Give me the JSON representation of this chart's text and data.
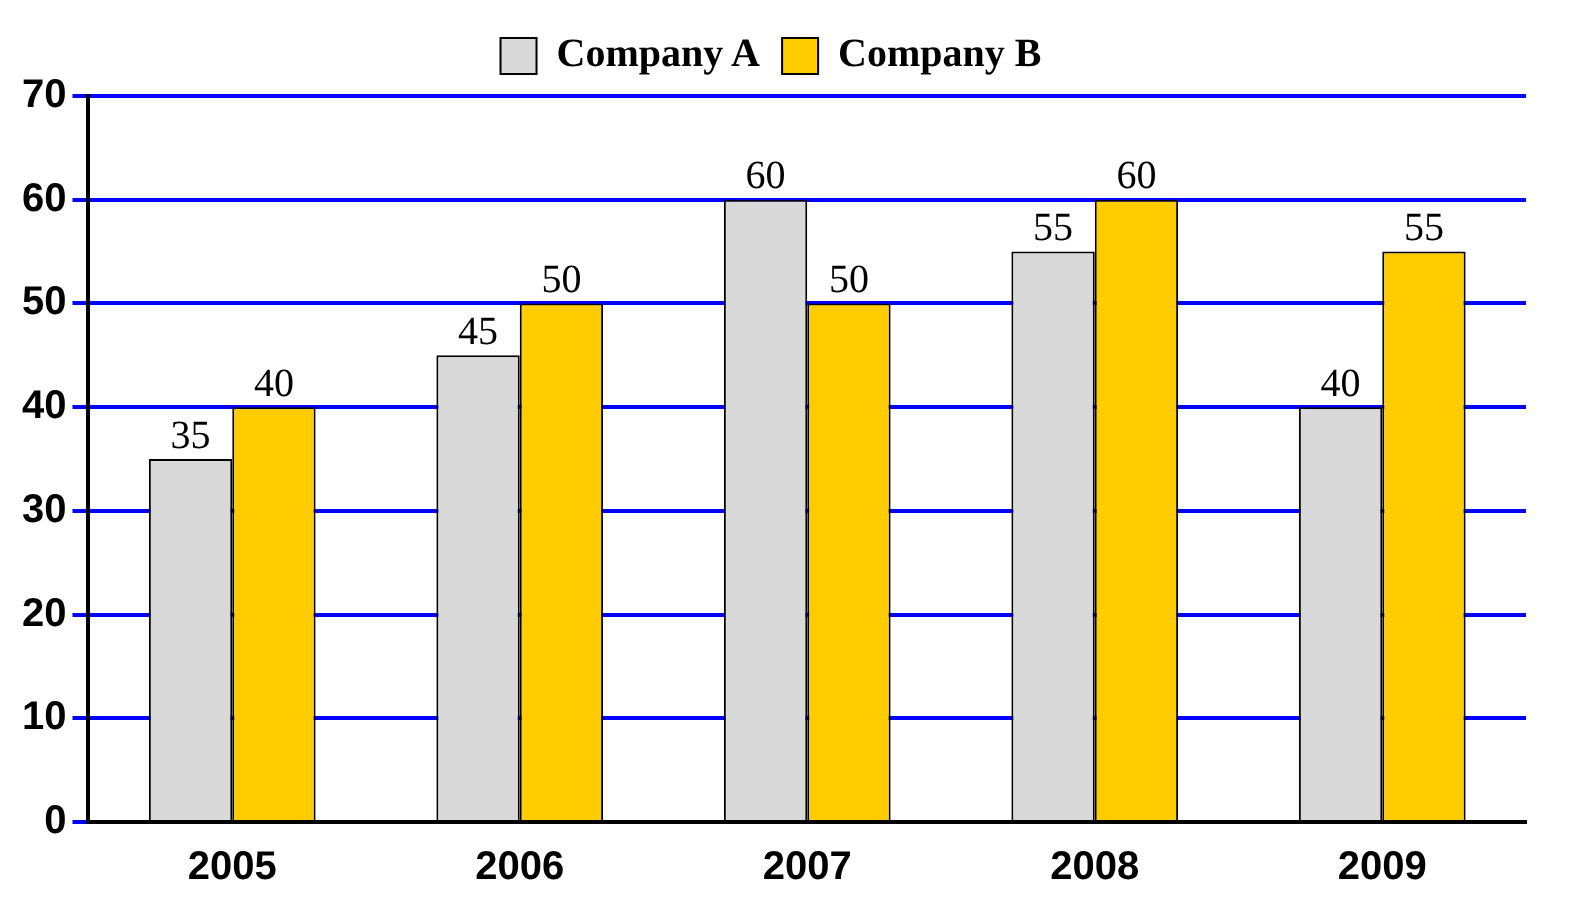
{
  "chart_data": {
    "type": "bar",
    "categories": [
      "2005",
      "2006",
      "2007",
      "2008",
      "2009"
    ],
    "series": [
      {
        "name": "Company A",
        "color": "#d9d9d9",
        "values": [
          35,
          45,
          60,
          55,
          40
        ]
      },
      {
        "name": "Company B",
        "color": "#ffcc00",
        "values": [
          40,
          50,
          50,
          60,
          55
        ]
      }
    ],
    "ylim": [
      0,
      70
    ],
    "yticks": [
      0,
      10,
      20,
      30,
      40,
      50,
      60,
      70
    ],
    "grid": "y",
    "legend": "top",
    "data_labels": true
  }
}
